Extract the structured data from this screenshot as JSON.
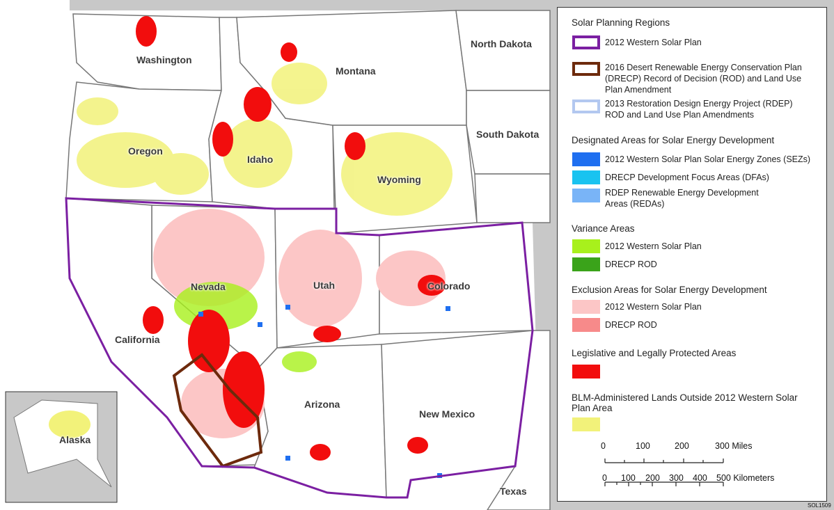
{
  "map": {
    "title": null,
    "states": [
      "Washington",
      "Oregon",
      "Idaho",
      "Montana",
      "North Dakota",
      "South Dakota",
      "Wyoming",
      "Nevada",
      "Utah",
      "Colorado",
      "California",
      "Arizona",
      "New Mexico",
      "Texas"
    ],
    "inset": "Alaska"
  },
  "legend": {
    "sections": [
      {
        "title": "Solar Planning Regions",
        "items": [
          {
            "label": "2012 Western Solar Plan",
            "outline_color": "#7b1fa2"
          },
          {
            "label": "2016 Desert Renewable Energy Conservation Plan (DRECP) Record of Decision (ROD) and Land Use Plan Amendment",
            "outline_color": "#6d2a0c"
          },
          {
            "label": "2013 Restoration Design Energy Project (RDEP) ROD and Land Use Plan Amendments",
            "outline_color": "#b3c8f0"
          }
        ]
      },
      {
        "title": "Designated Areas for Solar Energy Development",
        "items": [
          {
            "label": "2012 Western Solar Plan Solar Energy Zones (SEZs)",
            "color": "#1f6ff0"
          },
          {
            "label": "DRECP Development Focus Areas (DFAs)",
            "color": "#19c3f0"
          },
          {
            "label": "RDEP Renewable Energy Development Areas (REDAs)",
            "color": "#79b4f7"
          }
        ]
      },
      {
        "title": "Variance Areas",
        "items": [
          {
            "label": "2012 Western Solar Plan",
            "color": "#a8f01c"
          },
          {
            "label": "DRECP ROD",
            "color": "#3aa31a"
          }
        ]
      },
      {
        "title": "Exclusion Areas for Solar Energy Development",
        "items": [
          {
            "label": "2012 Western Solar Plan",
            "color": "#fcc6c6"
          },
          {
            "label": "DRECP ROD",
            "color": "#f78a8a"
          }
        ]
      },
      {
        "title": "Legislative and Legally Protected Areas",
        "items": [
          {
            "label": null,
            "color": "#f20d0d"
          }
        ]
      },
      {
        "title": "BLM-Administered Lands Outside 2012 Western Solar Plan Area",
        "items": [
          {
            "label": null,
            "color": "#f2f27a"
          }
        ]
      }
    ]
  },
  "scale": {
    "miles": [
      "0",
      "100",
      "200",
      "300 Miles"
    ],
    "kilometers": [
      "0",
      "100",
      "200",
      "300",
      "400",
      "500 Kilometers"
    ]
  },
  "code": "SOL1509"
}
